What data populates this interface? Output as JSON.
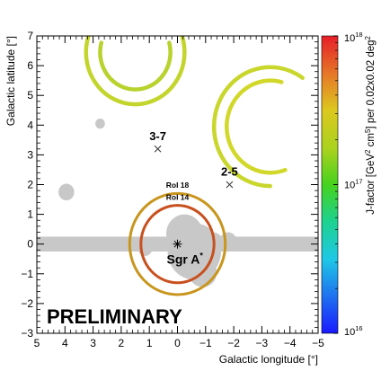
{
  "chart_data": {
    "type": "heatmap",
    "xlabel": "Galactic longitude [°]",
    "ylabel": "Galactic latitude [°]",
    "colorbar_label_parts": [
      "J-factor [GeV",
      "2",
      " cm",
      "5",
      "] per 0.02x0.02 deg",
      "2"
    ],
    "xlim": [
      5,
      -5
    ],
    "ylim": [
      -3,
      7
    ],
    "x_ticks": [
      5,
      4,
      3,
      2,
      1,
      0,
      -1,
      -2,
      -3,
      -4,
      -5
    ],
    "x_tick_labels": [
      "5",
      "4",
      "3",
      "2",
      "1",
      "0",
      "−1",
      "−2",
      "−3",
      "−4",
      "−5"
    ],
    "y_ticks": [
      -3,
      -2,
      -1,
      0,
      1,
      2,
      3,
      4,
      5,
      6,
      7
    ],
    "y_tick_labels": [
      "−3",
      "−2",
      "−1",
      "0",
      "1",
      "2",
      "3",
      "4",
      "5",
      "6",
      "7"
    ],
    "colorbar": {
      "scale": "log",
      "min": 1e+16,
      "max": 1e+18,
      "ticks": [
        {
          "value": 1e+16,
          "base": "10",
          "exp": "16"
        },
        {
          "value": 1e+17,
          "base": "10",
          "exp": "17"
        },
        {
          "value": 1e+18,
          "base": "10",
          "exp": "18"
        }
      ]
    },
    "watermark": "PRELIMINARY",
    "markers": [
      {
        "label": "Sgr A",
        "sup": "*",
        "l": 0.0,
        "b": 0.0,
        "symbol": "star"
      },
      {
        "label": "3-7",
        "l": 0.7,
        "b": 3.2,
        "symbol": "x"
      },
      {
        "label": "2-5",
        "l": -1.85,
        "b": 2.0,
        "symbol": "x"
      }
    ],
    "rings": [
      {
        "label": "RoI 14",
        "l": 0.0,
        "b": 0.0,
        "r_inner": 1.2,
        "r_outer": 1.4,
        "color": "#c8501e"
      },
      {
        "label": "RoI 18",
        "l": 0.0,
        "b": 0.0,
        "r_inner": 1.6,
        "r_outer": 1.8,
        "color": "#c8961e"
      }
    ],
    "arcs": [
      {
        "l": 1.5,
        "b": 6.45,
        "r": 1.25,
        "from_deg": 165,
        "to_deg": 375,
        "color": "#b9d22e"
      },
      {
        "l": 1.5,
        "b": 6.45,
        "r": 1.75,
        "from_deg": 158,
        "to_deg": 382,
        "color": "#c3d52c"
      },
      {
        "l": -3.3,
        "b": 3.95,
        "r": 1.55,
        "from_deg": 75,
        "to_deg": 290,
        "color": "#d2d82a"
      },
      {
        "l": -3.3,
        "b": 3.95,
        "r": 2.0,
        "from_deg": 55,
        "to_deg": 270,
        "color": "#c9d62c"
      }
    ],
    "masks": [
      {
        "shape": "rect",
        "l1": 5.0,
        "l2": -5.0,
        "b1": -0.25,
        "b2": 0.25
      },
      {
        "shape": "circle",
        "l": 3.95,
        "b": 1.75,
        "r": 0.28
      },
      {
        "shape": "circle",
        "l": 2.75,
        "b": 4.05,
        "r": 0.17
      },
      {
        "shape": "circle",
        "l": 1.15,
        "b": -0.15,
        "r": 0.25
      },
      {
        "shape": "circle",
        "l": -0.6,
        "b": -0.25,
        "r": 0.95
      },
      {
        "shape": "circle",
        "l": -0.25,
        "b": 0.35,
        "r": 0.65
      },
      {
        "shape": "circle",
        "l": -1.25,
        "b": 0.0,
        "r": 0.4
      },
      {
        "shape": "circle",
        "l": -1.8,
        "b": 0.1,
        "r": 0.3
      },
      {
        "shape": "circle",
        "l": -0.9,
        "b": -0.95,
        "r": 0.5
      }
    ]
  }
}
